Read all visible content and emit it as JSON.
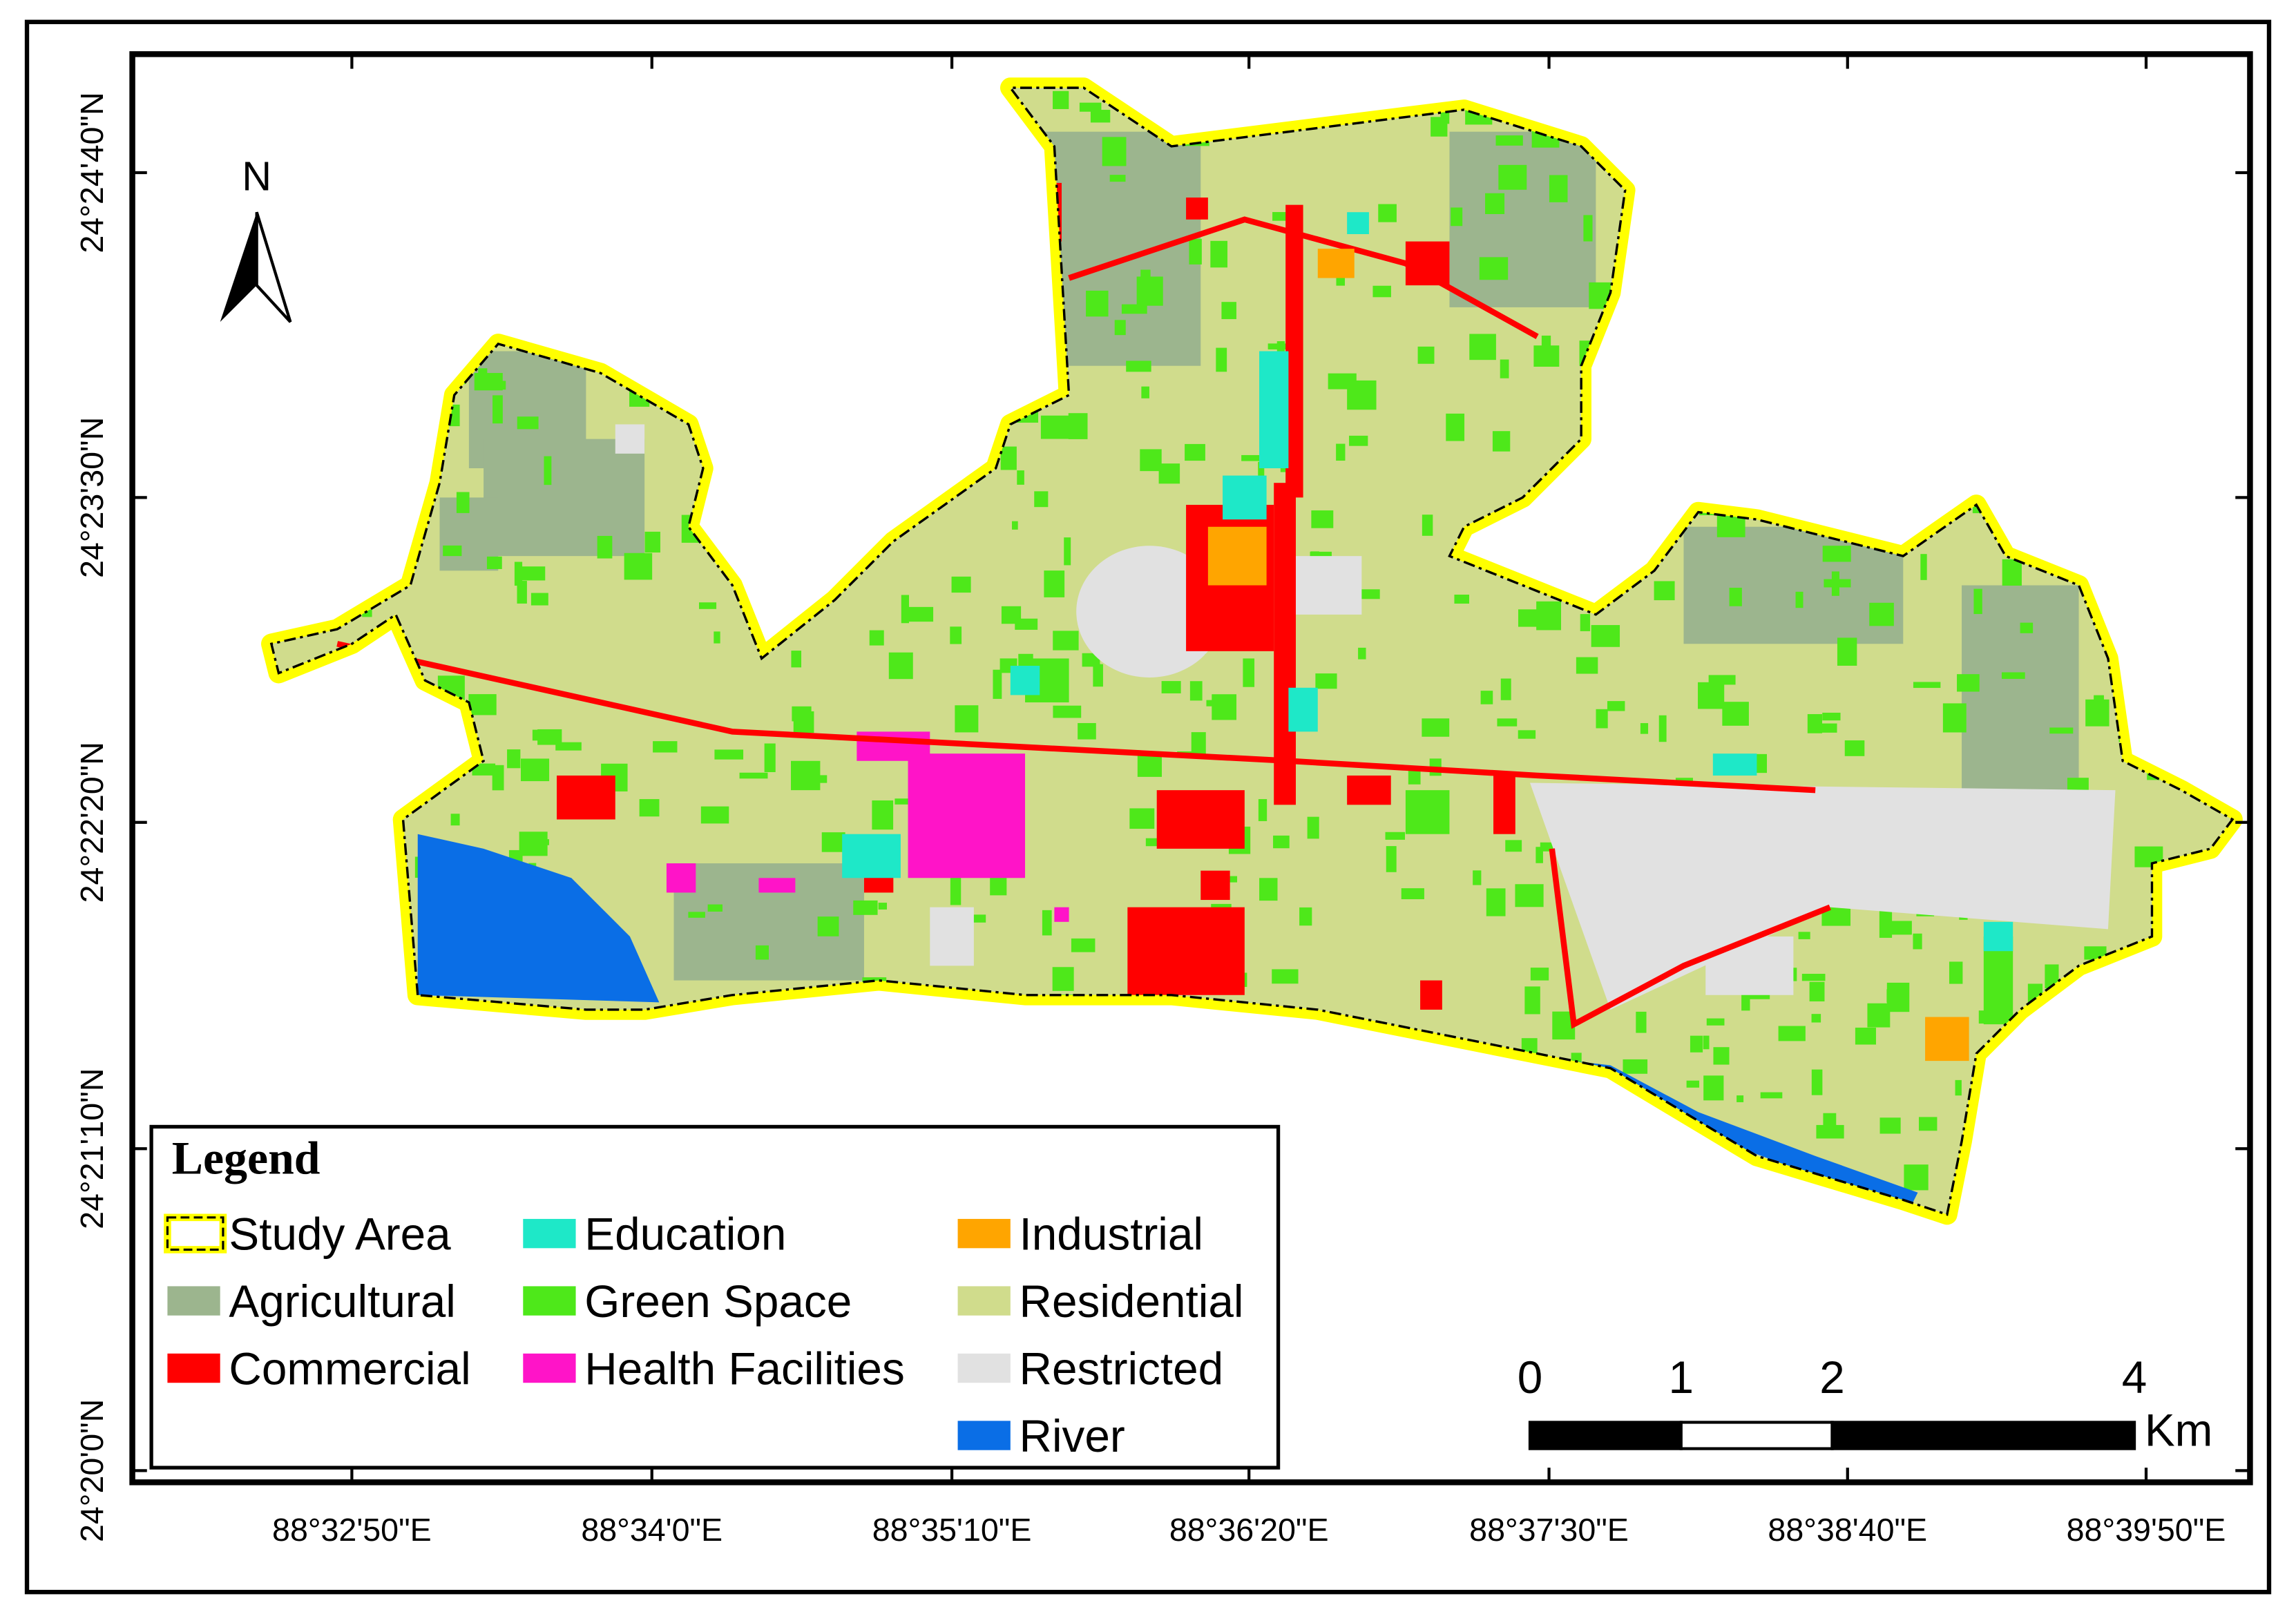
{
  "map": {
    "latitude_labels": [
      "24°24'40\"N",
      "24°23'30\"N",
      "24°22'20\"N",
      "24°21'10\"N",
      "24°20'0\"N"
    ],
    "longitude_labels": [
      "88°32'50\"E",
      "88°34'0\"E",
      "88°35'10\"E",
      "88°36'20\"E",
      "88°37'30\"E",
      "88°38'40\"E",
      "88°39'50\"E"
    ],
    "north_label": "N",
    "legend": {
      "title": "Legend",
      "items": [
        {
          "label": "Study Area",
          "color": "#ffff00"
        },
        {
          "label": "Agricultural",
          "color": "#9cb58e"
        },
        {
          "label": "Commercial",
          "color": "#ff0000"
        },
        {
          "label": "Education",
          "color": "#1ee8c8"
        },
        {
          "label": "Green Space",
          "color": "#4ee81a"
        },
        {
          "label": "Health Facilities",
          "color": "#ff14c8"
        },
        {
          "label": "Industrial",
          "color": "#ffa500"
        },
        {
          "label": "Residential",
          "color": "#d0dc8c"
        },
        {
          "label": "Restricted",
          "color": "#e1e1e1"
        },
        {
          "label": "River",
          "color": "#0a6ee6"
        }
      ]
    },
    "scale_bar": {
      "ticks": [
        0,
        1,
        2,
        4
      ],
      "unit": "Km"
    }
  }
}
